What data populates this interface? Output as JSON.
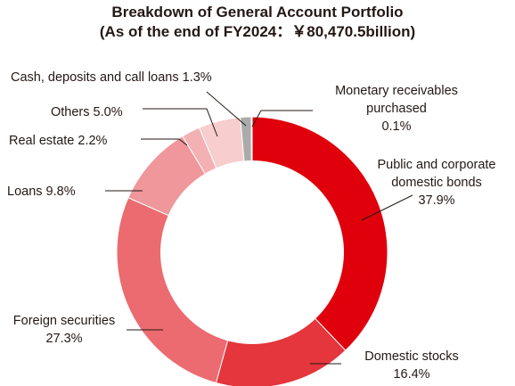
{
  "chart_data": {
    "type": "pie",
    "title_lines": [
      "Breakdown of General Account Portfolio",
      "(As of the end of FY2024：￥80,470.5billion)"
    ],
    "slices": [
      {
        "label": "Public and corporate domestic bonds",
        "value": 37.9,
        "label_lines": [
          "Public and corporate",
          "domestic bonds",
          "37.9%"
        ],
        "color": "#E0000B"
      },
      {
        "label": "Domestic stocks",
        "value": 16.4,
        "label_lines": [
          "Domestic stocks",
          "16.4%"
        ],
        "color": "#E5353D"
      },
      {
        "label": "Foreign securities",
        "value": 27.3,
        "label_lines": [
          "Foreign securities",
          "27.3%"
        ],
        "color": "#EB6B70"
      },
      {
        "label": "Loans",
        "value": 9.8,
        "label_lines": [
          "Loans 9.8%"
        ],
        "color": "#EF979A"
      },
      {
        "label": "Real estate",
        "value": 2.2,
        "label_lines": [
          "Real estate 2.2%"
        ],
        "color": "#F4B1B3"
      },
      {
        "label": "Others",
        "value": 5.0,
        "label_lines": [
          "Others 5.0%"
        ],
        "color": "#F7CDCE"
      },
      {
        "label": "Cash, deposits and call loans",
        "value": 1.3,
        "label_lines": [
          "Cash, deposits and call loans 1.3%"
        ],
        "color": "#ABABAB"
      },
      {
        "label": "Monetary receivables purchased",
        "value": 0.1,
        "label_lines": [
          "Monetary receivables",
          "purchased",
          "0.1%"
        ],
        "color": "#7F7F7F"
      }
    ]
  }
}
